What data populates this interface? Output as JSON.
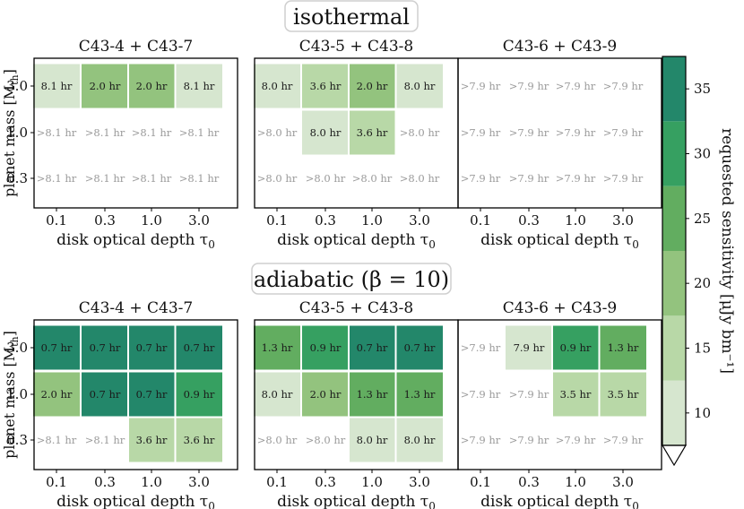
{
  "chart_data": {
    "type": "heatmap",
    "title_groups": [
      "isothermal",
      "adiabatic (β = 10)"
    ],
    "panel_titles": [
      [
        "C43-4 + C43-7",
        "C43-5 + C43-8",
        "C43-6 + C43-9"
      ],
      [
        "C43-4 + C43-7",
        "C43-5 + C43-8",
        "C43-6 + C43-9"
      ]
    ],
    "x_ticks": [
      "0.1",
      "0.3",
      "1.0",
      "3.0"
    ],
    "xlabel": "disk optical depth τ",
    "xlabel_sub": "0",
    "y_ticks_top_to_bottom": [
      "3.0",
      "1.0",
      "0.3"
    ],
    "ylabel": "planet mass [M",
    "ylabel_sub": "th",
    "ylabel_end": "]",
    "colorbar": {
      "label": "requested sensitivity [μJy bm⁻¹]",
      "ticks": [
        "10",
        "15",
        "20",
        "25",
        "30",
        "35"
      ],
      "levels": [
        7.5,
        12.5,
        17.5,
        22.5,
        27.5,
        32.5,
        37.5
      ],
      "colors": [
        "#d6e6cf",
        "#b8d8a7",
        "#93c37e",
        "#62ad60",
        "#36a061",
        "#23876a"
      ]
    },
    "panels": [
      {
        "group": 0,
        "col": 0,
        "labels": [
          [
            "8.1 hr",
            "2.0 hr",
            "2.0 hr",
            "8.1 hr"
          ],
          [
            ">8.1 hr",
            ">8.1 hr",
            ">8.1 hr",
            ">8.1 hr"
          ],
          [
            ">8.1 hr",
            ">8.1 hr",
            ">8.1 hr",
            ">8.1 hr"
          ]
        ],
        "levels": [
          [
            0,
            2,
            2,
            0
          ],
          [
            -1,
            -1,
            -1,
            -1
          ],
          [
            -1,
            -1,
            -1,
            -1
          ]
        ]
      },
      {
        "group": 0,
        "col": 1,
        "labels": [
          [
            "8.0 hr",
            "3.6 hr",
            "2.0 hr",
            "8.0 hr"
          ],
          [
            ">8.0 hr",
            "8.0 hr",
            "3.6 hr",
            ">8.0 hr"
          ],
          [
            ">8.0 hr",
            ">8.0 hr",
            ">8.0 hr",
            ">8.0 hr"
          ]
        ],
        "levels": [
          [
            0,
            1,
            2,
            0
          ],
          [
            -1,
            0,
            1,
            -1
          ],
          [
            -1,
            -1,
            -1,
            -1
          ]
        ]
      },
      {
        "group": 0,
        "col": 2,
        "labels": [
          [
            ">7.9 hr",
            ">7.9 hr",
            ">7.9 hr",
            ">7.9 hr"
          ],
          [
            ">7.9 hr",
            ">7.9 hr",
            ">7.9 hr",
            ">7.9 hr"
          ],
          [
            ">7.9 hr",
            ">7.9 hr",
            ">7.9 hr",
            ">7.9 hr"
          ]
        ],
        "levels": [
          [
            -1,
            -1,
            -1,
            -1
          ],
          [
            -1,
            -1,
            -1,
            -1
          ],
          [
            -1,
            -1,
            -1,
            -1
          ]
        ]
      },
      {
        "group": 1,
        "col": 0,
        "labels": [
          [
            "0.7 hr",
            "0.7 hr",
            "0.7 hr",
            "0.7 hr"
          ],
          [
            "2.0 hr",
            "0.7 hr",
            "0.7 hr",
            "0.9 hr"
          ],
          [
            ">8.1 hr",
            ">8.1 hr",
            "3.6 hr",
            "3.6 hr"
          ]
        ],
        "levels": [
          [
            5,
            5,
            5,
            5
          ],
          [
            2,
            5,
            5,
            4
          ],
          [
            -1,
            -1,
            1,
            1
          ]
        ]
      },
      {
        "group": 1,
        "col": 1,
        "labels": [
          [
            "1.3 hr",
            "0.9 hr",
            "0.7 hr",
            "0.7 hr"
          ],
          [
            "8.0 hr",
            "2.0 hr",
            "1.3 hr",
            "1.3 hr"
          ],
          [
            ">8.0 hr",
            ">8.0 hr",
            "8.0 hr",
            "8.0 hr"
          ]
        ],
        "levels": [
          [
            3,
            4,
            5,
            5
          ],
          [
            0,
            2,
            3,
            3
          ],
          [
            -1,
            -1,
            0,
            0
          ]
        ]
      },
      {
        "group": 1,
        "col": 2,
        "labels": [
          [
            ">7.9 hr",
            "7.9 hr",
            "0.9 hr",
            "1.3 hr"
          ],
          [
            ">7.9 hr",
            ">7.9 hr",
            "3.5 hr",
            "3.5 hr"
          ],
          [
            ">7.9 hr",
            ">7.9 hr",
            ">7.9 hr",
            ">7.9 hr"
          ]
        ],
        "levels": [
          [
            -1,
            0,
            4,
            3
          ],
          [
            -1,
            -1,
            1,
            1
          ],
          [
            -1,
            -1,
            -1,
            -1
          ]
        ]
      }
    ]
  }
}
